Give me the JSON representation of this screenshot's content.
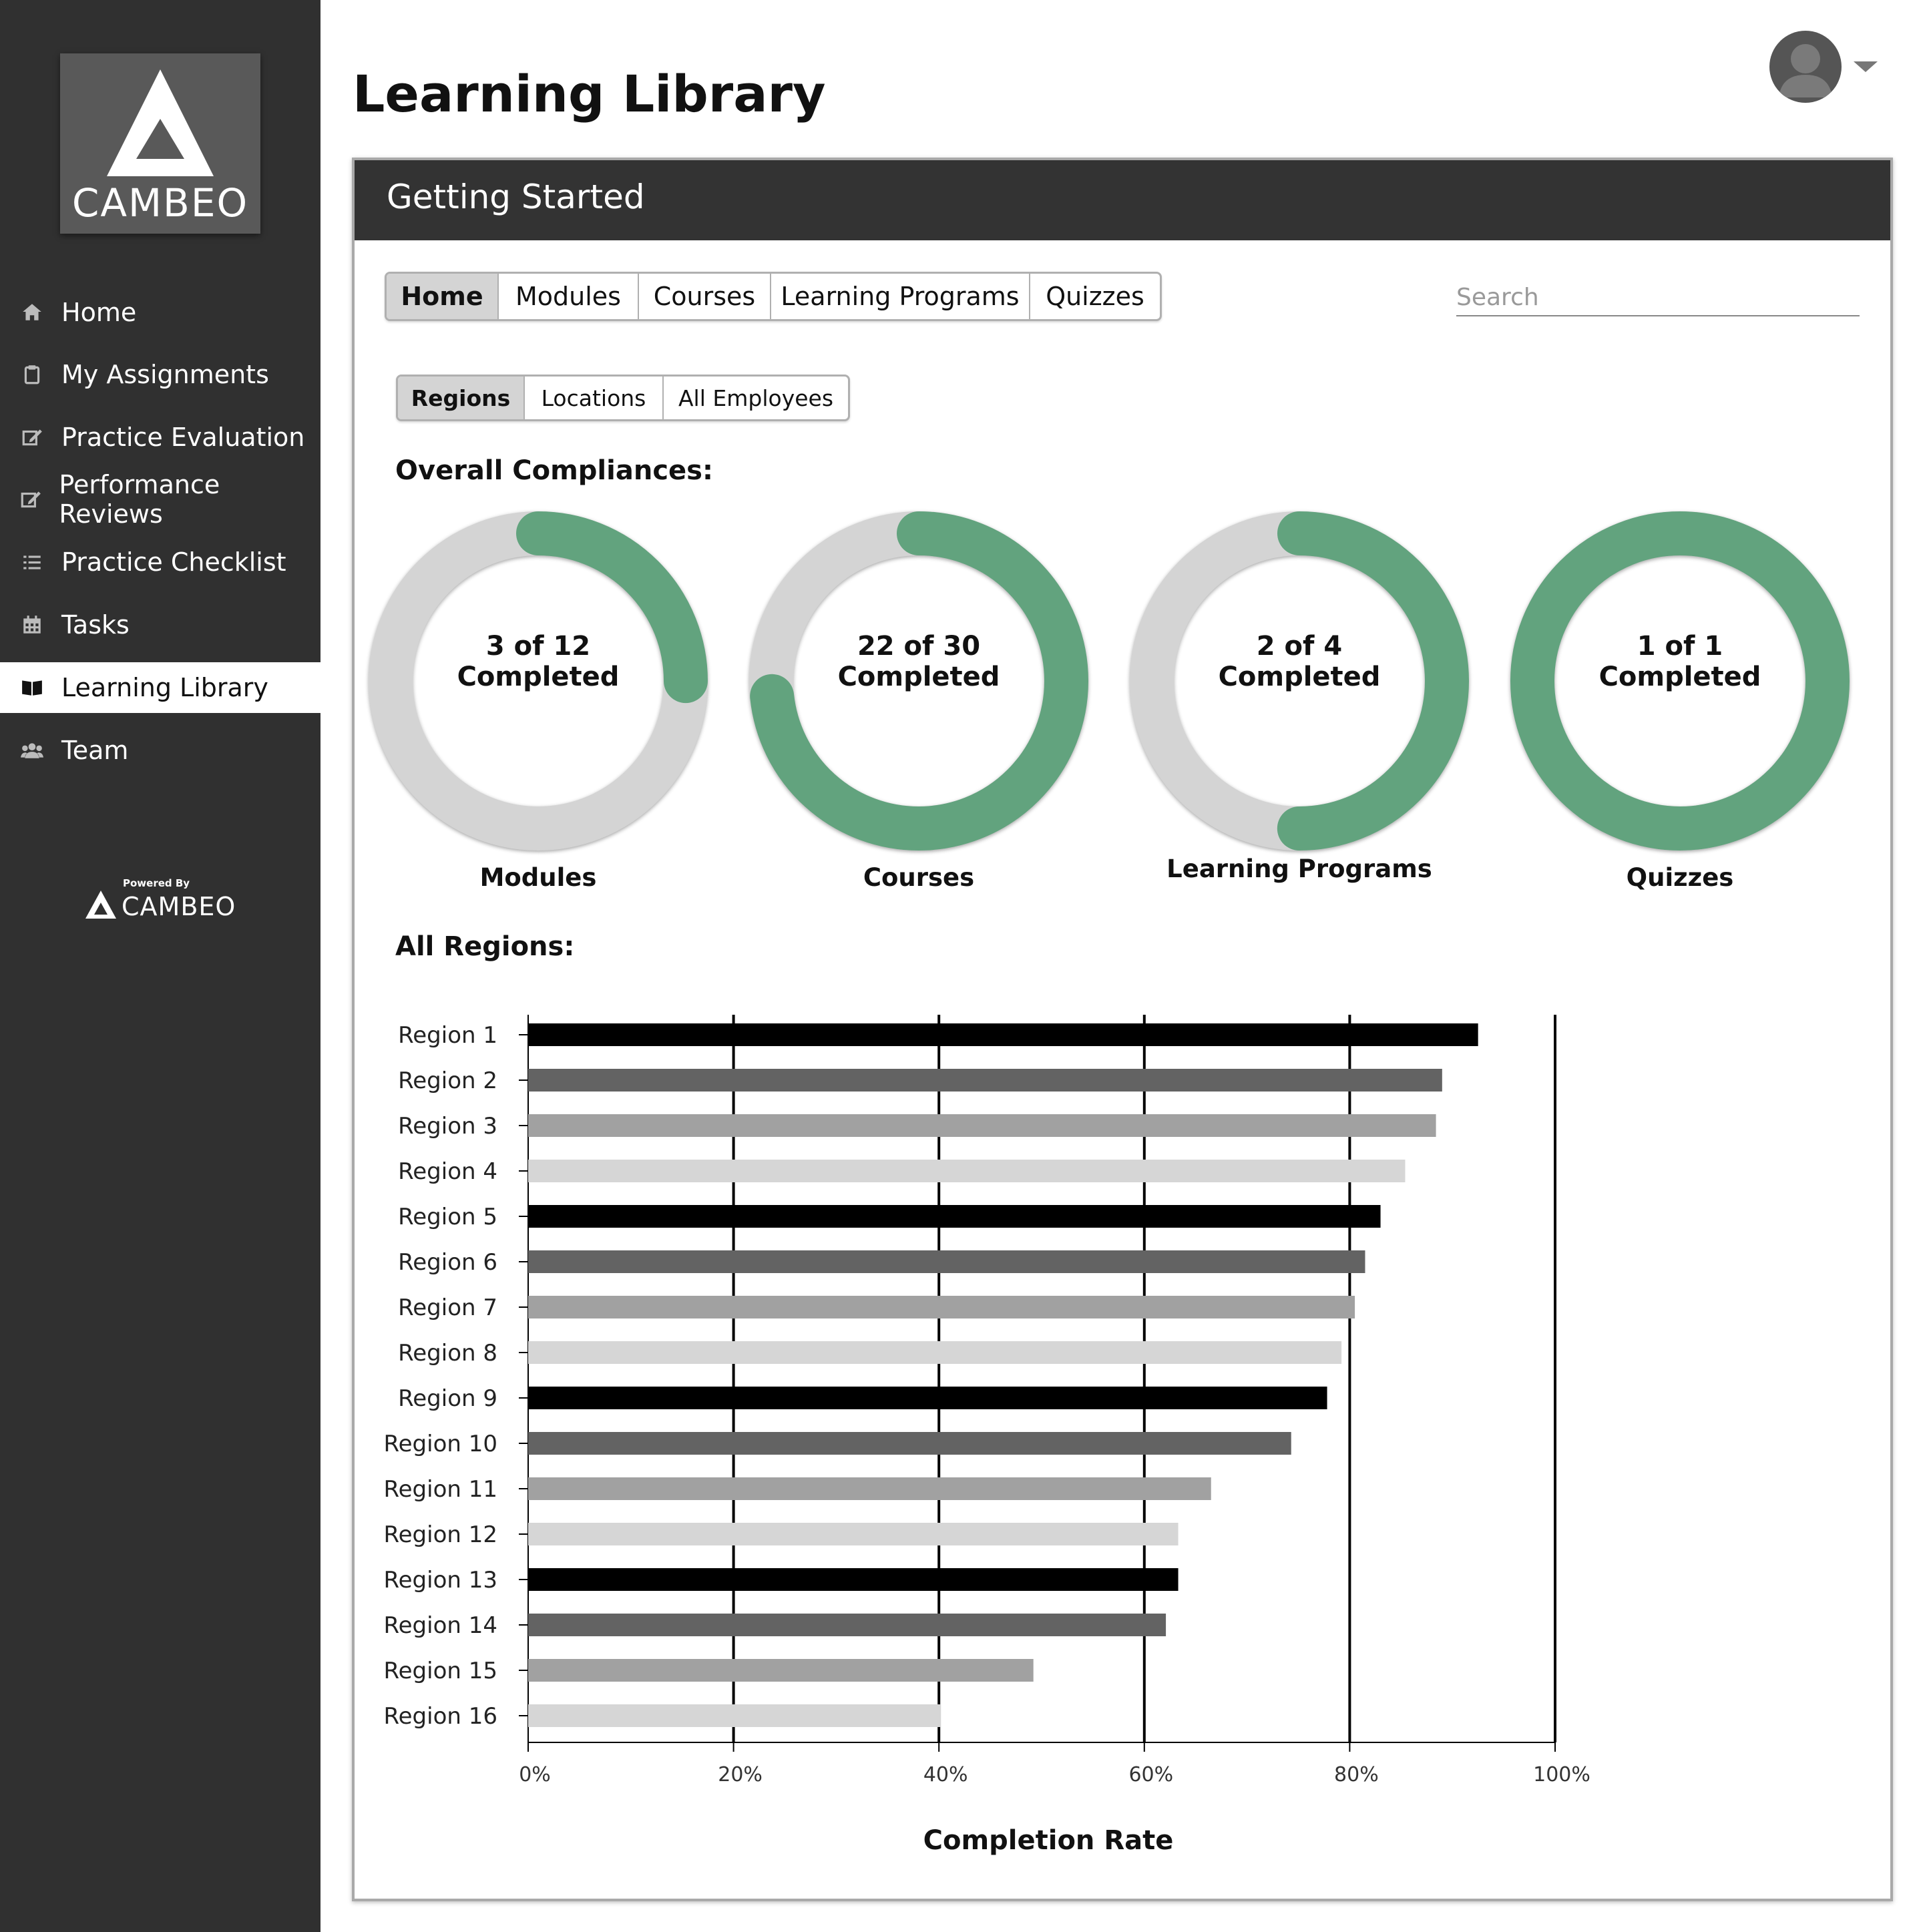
{
  "brand": {
    "logo_text": "CAMBEO",
    "powered_by": "Powered By",
    "powered_logo_text": "CAMBEO"
  },
  "sidebar": {
    "items": [
      {
        "label": "Home",
        "icon": "home-icon"
      },
      {
        "label": "My Assignments",
        "icon": "clipboard-icon"
      },
      {
        "label": "Practice Evaluation",
        "icon": "edit-icon"
      },
      {
        "label": "Performance Reviews",
        "icon": "edit-icon"
      },
      {
        "label": "Practice Checklist",
        "icon": "list-icon"
      },
      {
        "label": "Tasks",
        "icon": "calendar-icon"
      },
      {
        "label": "Learning Library",
        "icon": "book-icon",
        "active": true
      },
      {
        "label": "Team",
        "icon": "team-icon"
      }
    ]
  },
  "header": {
    "title": "Learning Library"
  },
  "panel": {
    "title": "Getting Started",
    "tabs": [
      "Home",
      "Modules",
      "Courses",
      "Learning Programs",
      "Quizzes"
    ],
    "selected_tab": "Home",
    "search_placeholder": "Search",
    "sub_tabs": [
      "Regions",
      "Locations",
      "All Employees"
    ],
    "selected_sub_tab": "Regions",
    "compliance_heading": "Overall Compliances:",
    "regions_heading": "All Regions:"
  },
  "compliances": [
    {
      "label": "Modules",
      "completed": 3,
      "total": 12,
      "line1": "3 of 12",
      "line2": "Completed"
    },
    {
      "label": "Courses",
      "completed": 22,
      "total": 30,
      "line1": "22 of 30",
      "line2": "Completed"
    },
    {
      "label": "Learning Programs",
      "completed": 2,
      "total": 4,
      "line1": "2 of 4",
      "line2": "Completed"
    },
    {
      "label": "Quizzes",
      "completed": 1,
      "total": 1,
      "line1": "1 of 1",
      "line2": "Completed"
    }
  ],
  "colors": {
    "accent_green": "#62a37e",
    "ring_gray": "#d4d4d4",
    "sidebar_bg": "#303030",
    "bar_shades": [
      "#000000",
      "#636363",
      "#a1a1a1",
      "#d6d6d6"
    ]
  },
  "chart_data": {
    "type": "bar",
    "orientation": "horizontal",
    "categories": [
      "Region 1",
      "Region 2",
      "Region 3",
      "Region 4",
      "Region 5",
      "Region 6",
      "Region 7",
      "Region 8",
      "Region 9",
      "Region 10",
      "Region 11",
      "Region 12",
      "Region 13",
      "Region 14",
      "Region 15",
      "Region 16"
    ],
    "values": [
      92.5,
      89,
      88.4,
      85.4,
      83,
      81.5,
      80.5,
      79.2,
      77.8,
      74.3,
      66.5,
      63.3,
      63.3,
      62.1,
      49.2,
      40.2
    ],
    "xlabel": "Completion Rate",
    "xlim": [
      0,
      100
    ],
    "xticks": [
      "0%",
      "20%",
      "40%",
      "60%",
      "80%",
      "100%"
    ],
    "grid": "vertical"
  }
}
